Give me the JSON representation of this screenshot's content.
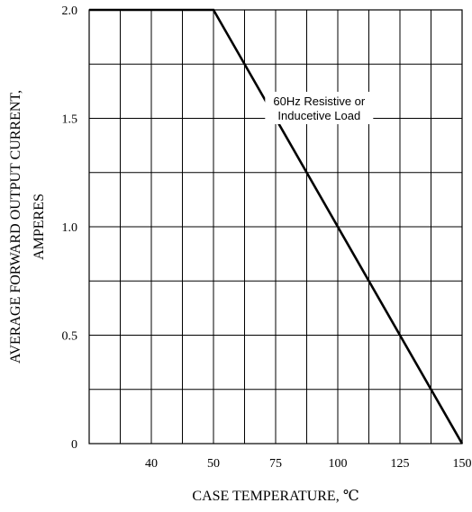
{
  "chart_data": {
    "type": "line",
    "title": "",
    "xlabel": "CASE TEMPERATURE, ℃",
    "ylabel_line1": "AVERAGE FORWARD OUTPUT  CURRENT,",
    "ylabel_line2": "AMPERES",
    "x_tick_labels": [
      "40",
      "50",
      "75",
      "100",
      "125",
      "150"
    ],
    "y_tick_labels": [
      "0",
      "0.5",
      "1.0",
      "1.5",
      "2.0"
    ],
    "y_ticks": [
      0,
      0.5,
      1.0,
      1.5,
      2.0
    ],
    "ylim": [
      0,
      2.0
    ],
    "x_grid_columns": 12,
    "y_grid_rows": 8,
    "grid": true,
    "annotation_line1": "60Hz Resistive or",
    "annotation_line2": "Inducetive Load",
    "series": [
      {
        "x": [
          25,
          50,
          150
        ],
        "y": [
          2.0,
          2.0,
          0
        ]
      }
    ]
  }
}
